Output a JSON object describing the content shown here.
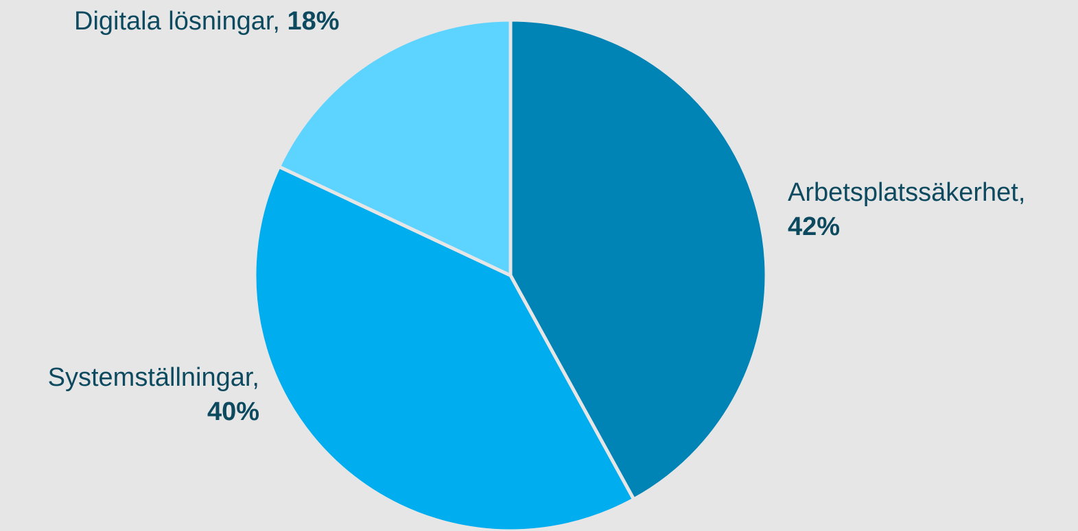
{
  "chart_data": {
    "type": "pie",
    "title": "",
    "slices": [
      {
        "label": "Arbetsplatssäkerhet,",
        "value": 42,
        "value_label": "42%",
        "color": "#0083b5"
      },
      {
        "label": "Systemställningar,",
        "value": 40,
        "value_label": "40%",
        "color": "#00adee"
      },
      {
        "label": "Digitala lösningar,",
        "value": 18,
        "value_label": "18%",
        "color": "#5dd3ff"
      }
    ],
    "start_angle": "12 o'clock",
    "direction": "clockwise",
    "label_color": "#0d4a5f",
    "background": "#e6e6e6"
  }
}
